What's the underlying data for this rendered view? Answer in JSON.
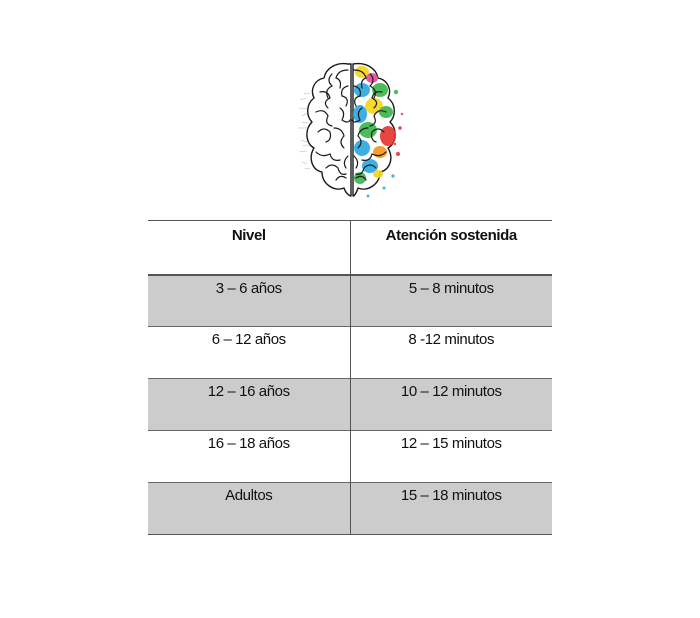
{
  "brain_graphic": {
    "icon": "brain-icon",
    "colors": [
      "#e5322d",
      "#f7d416",
      "#39b54a",
      "#29a8e0",
      "#e84393",
      "#f7941d"
    ]
  },
  "table": {
    "headers": [
      "Nivel",
      "Atención sostenida"
    ],
    "rows": [
      [
        "3 – 6 años",
        "5 – 8 minutos"
      ],
      [
        "6 – 12 años",
        "8 -12 minutos"
      ],
      [
        "12 – 16 años",
        "10 – 12 minutos"
      ],
      [
        "16 – 18 años",
        "12 – 15 minutos"
      ],
      [
        "Adultos",
        "15 – 18 minutos"
      ]
    ],
    "stripe_color": "#cccccc"
  }
}
